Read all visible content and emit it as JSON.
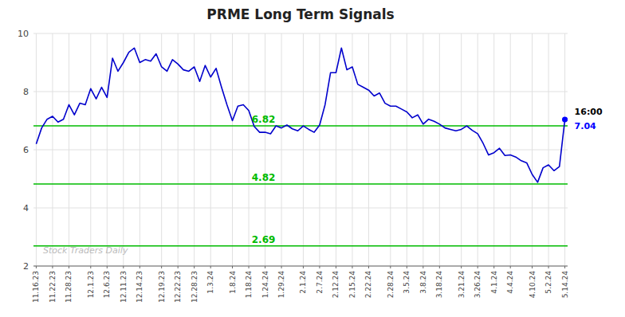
{
  "chart_data": {
    "type": "line",
    "title": "PRME Long Term Signals",
    "categories": [
      "11.16.23",
      null,
      null,
      "11.22.23",
      null,
      null,
      "11.28.23",
      null,
      null,
      null,
      "12.1.23",
      null,
      null,
      "12.6.23",
      null,
      null,
      "12.11.23",
      null,
      null,
      "12.14.23",
      null,
      null,
      null,
      "12.19.23",
      null,
      null,
      "12.22.23",
      null,
      null,
      "12.28.23",
      null,
      null,
      "1.3.24",
      null,
      null,
      null,
      "1.8.24",
      null,
      null,
      "1.18.24",
      null,
      null,
      "1.24.24",
      null,
      null,
      "1.29.24",
      null,
      null,
      null,
      "2.1.24",
      null,
      null,
      "2.7.24",
      null,
      null,
      "2.12.24",
      null,
      null,
      "2.15.24",
      null,
      null,
      "2.22.24",
      null,
      null,
      null,
      "2.28.24",
      null,
      null,
      "3.5.24",
      null,
      null,
      "3.8.24",
      null,
      null,
      "3.18.24",
      null,
      null,
      null,
      "3.21.24",
      null,
      null,
      "3.26.24",
      null,
      null,
      "4.1.24",
      null,
      null,
      "4.4.24",
      null,
      null,
      null,
      "4.10.24",
      null,
      null,
      "5.2.24",
      null,
      null,
      "5.14.24"
    ],
    "values": [
      6.2,
      6.75,
      7.05,
      7.15,
      6.95,
      7.05,
      7.55,
      7.2,
      7.6,
      7.55,
      8.1,
      7.75,
      8.15,
      7.8,
      9.15,
      8.7,
      9.0,
      9.35,
      9.5,
      9.0,
      9.1,
      9.05,
      9.3,
      8.85,
      8.7,
      9.1,
      8.95,
      8.75,
      8.7,
      8.85,
      8.35,
      8.9,
      8.5,
      8.8,
      8.15,
      7.55,
      7.0,
      7.5,
      7.55,
      7.35,
      6.8,
      6.6,
      6.6,
      6.55,
      6.82,
      6.75,
      6.85,
      6.72,
      6.65,
      6.82,
      6.7,
      6.6,
      6.85,
      7.55,
      8.65,
      8.65,
      9.5,
      8.75,
      8.85,
      8.25,
      8.15,
      8.05,
      7.85,
      7.95,
      7.6,
      7.5,
      7.5,
      7.4,
      7.3,
      7.1,
      7.2,
      6.88,
      7.05,
      6.98,
      6.88,
      6.75,
      6.7,
      6.65,
      6.7,
      6.82,
      6.67,
      6.55,
      6.22,
      5.82,
      5.9,
      6.05,
      5.8,
      5.82,
      5.75,
      5.62,
      5.55,
      5.15,
      4.88,
      5.38,
      5.48,
      5.28,
      5.42,
      7.04
    ],
    "color": "#0000cc",
    "ylim": [
      2,
      10
    ],
    "yticks": [
      2,
      4,
      6,
      8,
      10
    ],
    "grid": true,
    "reference_lines": [
      {
        "value": 6.82,
        "label": "6.82",
        "color": "#00bb00"
      },
      {
        "value": 4.82,
        "label": "4.82",
        "color": "#00bb00"
      },
      {
        "value": 2.69,
        "label": "2.69",
        "color": "#00bb00"
      }
    ],
    "last_point": {
      "value": 7.04,
      "color": "#0000ff",
      "labels": [
        {
          "text": "16:00",
          "color": "#000000"
        },
        {
          "text": "7.04",
          "color": "#0000ff"
        }
      ]
    },
    "watermark": "Stock Traders Daily",
    "watermark_color": "#bbbbbb"
  }
}
